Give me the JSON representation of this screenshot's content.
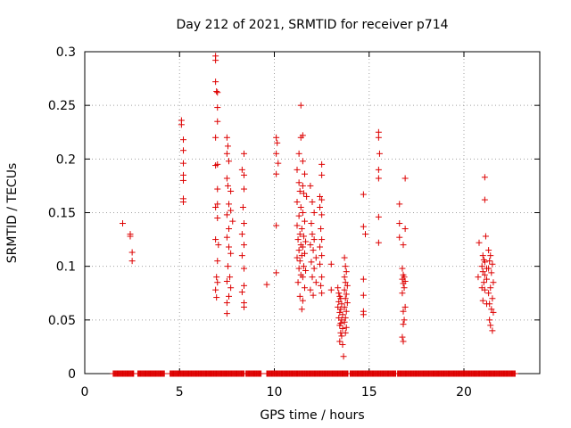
{
  "chart_data": {
    "type": "scatter",
    "title": "Day 212 of 2021, SRMTID for receiver p714",
    "xlabel": "GPS time / hours",
    "ylabel": "SRMTID / TECUs",
    "xlim": [
      0,
      24
    ],
    "ylim": [
      0,
      0.3
    ],
    "grid": true,
    "marker": "plus",
    "color": "#dd0000",
    "x_ticks": [
      0,
      5,
      10,
      15,
      20
    ],
    "x_tick_labels": [
      "0",
      "5",
      "10",
      "15",
      "20"
    ],
    "y_ticks": [
      0,
      0.05,
      0.1,
      0.15,
      0.2,
      0.25,
      0.3
    ],
    "y_tick_labels": [
      "0",
      "0.05",
      "0.1",
      "0.15",
      "0.2",
      "0.25",
      "0.3"
    ],
    "series": [
      {
        "name": "SRMTID",
        "points": [
          [
            2.0,
            0.14
          ],
          [
            2.4,
            0.13
          ],
          [
            2.4,
            0.128
          ],
          [
            2.5,
            0.113
          ],
          [
            2.5,
            0.105
          ],
          [
            5.1,
            0.236
          ],
          [
            5.1,
            0.232
          ],
          [
            5.2,
            0.218
          ],
          [
            5.2,
            0.208
          ],
          [
            5.2,
            0.196
          ],
          [
            5.2,
            0.185
          ],
          [
            5.2,
            0.18
          ],
          [
            5.2,
            0.163
          ],
          [
            5.2,
            0.16
          ],
          [
            6.9,
            0.296
          ],
          [
            6.9,
            0.292
          ],
          [
            6.9,
            0.272
          ],
          [
            6.95,
            0.263
          ],
          [
            7.0,
            0.262
          ],
          [
            7.0,
            0.248
          ],
          [
            7.0,
            0.235
          ],
          [
            6.9,
            0.22
          ],
          [
            7.0,
            0.195
          ],
          [
            6.9,
            0.194
          ],
          [
            7.0,
            0.172
          ],
          [
            7.0,
            0.158
          ],
          [
            6.9,
            0.155
          ],
          [
            7.0,
            0.145
          ],
          [
            6.9,
            0.125
          ],
          [
            7.05,
            0.12
          ],
          [
            7.0,
            0.105
          ],
          [
            6.95,
            0.09
          ],
          [
            7.0,
            0.085
          ],
          [
            6.9,
            0.078
          ],
          [
            6.95,
            0.071
          ],
          [
            7.5,
            0.22
          ],
          [
            7.55,
            0.212
          ],
          [
            7.5,
            0.205
          ],
          [
            7.6,
            0.198
          ],
          [
            7.5,
            0.182
          ],
          [
            7.55,
            0.175
          ],
          [
            7.7,
            0.17
          ],
          [
            7.6,
            0.158
          ],
          [
            7.7,
            0.152
          ],
          [
            7.5,
            0.148
          ],
          [
            7.8,
            0.142
          ],
          [
            7.6,
            0.135
          ],
          [
            7.5,
            0.127
          ],
          [
            7.6,
            0.118
          ],
          [
            7.7,
            0.112
          ],
          [
            7.55,
            0.1
          ],
          [
            7.65,
            0.09
          ],
          [
            7.5,
            0.086
          ],
          [
            7.7,
            0.08
          ],
          [
            7.6,
            0.072
          ],
          [
            7.5,
            0.066
          ],
          [
            7.5,
            0.056
          ],
          [
            8.4,
            0.205
          ],
          [
            8.3,
            0.19
          ],
          [
            8.4,
            0.185
          ],
          [
            8.4,
            0.172
          ],
          [
            8.35,
            0.155
          ],
          [
            8.4,
            0.14
          ],
          [
            8.3,
            0.13
          ],
          [
            8.4,
            0.12
          ],
          [
            8.3,
            0.11
          ],
          [
            8.4,
            0.098
          ],
          [
            8.4,
            0.082
          ],
          [
            8.3,
            0.076
          ],
          [
            8.4,
            0.066
          ],
          [
            8.4,
            0.062
          ],
          [
            9.6,
            0.083
          ],
          [
            10.1,
            0.22
          ],
          [
            10.15,
            0.215
          ],
          [
            10.1,
            0.205
          ],
          [
            10.2,
            0.196
          ],
          [
            10.1,
            0.186
          ],
          [
            10.1,
            0.138
          ],
          [
            10.1,
            0.094
          ],
          [
            11.4,
            0.25
          ],
          [
            11.5,
            0.222
          ],
          [
            11.4,
            0.22
          ],
          [
            11.3,
            0.205
          ],
          [
            11.5,
            0.198
          ],
          [
            11.2,
            0.19
          ],
          [
            11.6,
            0.186
          ],
          [
            11.3,
            0.178
          ],
          [
            11.5,
            0.175
          ],
          [
            11.35,
            0.17
          ],
          [
            11.55,
            0.168
          ],
          [
            11.7,
            0.165
          ],
          [
            11.2,
            0.16
          ],
          [
            11.4,
            0.155
          ],
          [
            11.5,
            0.15
          ],
          [
            11.3,
            0.147
          ],
          [
            11.6,
            0.142
          ],
          [
            11.2,
            0.138
          ],
          [
            11.45,
            0.135
          ],
          [
            11.35,
            0.13
          ],
          [
            11.55,
            0.128
          ],
          [
            11.25,
            0.125
          ],
          [
            11.65,
            0.123
          ],
          [
            11.4,
            0.12
          ],
          [
            11.5,
            0.118
          ],
          [
            11.3,
            0.115
          ],
          [
            11.6,
            0.112
          ],
          [
            11.45,
            0.11
          ],
          [
            11.2,
            0.108
          ],
          [
            11.35,
            0.105
          ],
          [
            11.55,
            0.1
          ],
          [
            11.3,
            0.098
          ],
          [
            11.65,
            0.096
          ],
          [
            11.4,
            0.092
          ],
          [
            11.5,
            0.09
          ],
          [
            11.25,
            0.085
          ],
          [
            11.6,
            0.08
          ],
          [
            11.35,
            0.072
          ],
          [
            11.5,
            0.068
          ],
          [
            11.45,
            0.06
          ],
          [
            11.9,
            0.175
          ],
          [
            12.0,
            0.16
          ],
          [
            12.1,
            0.15
          ],
          [
            11.95,
            0.14
          ],
          [
            12.0,
            0.13
          ],
          [
            12.1,
            0.125
          ],
          [
            11.9,
            0.12
          ],
          [
            12.05,
            0.115
          ],
          [
            12.2,
            0.108
          ],
          [
            11.95,
            0.104
          ],
          [
            12.1,
            0.098
          ],
          [
            12.0,
            0.09
          ],
          [
            12.2,
            0.085
          ],
          [
            11.9,
            0.078
          ],
          [
            12.05,
            0.073
          ],
          [
            12.5,
            0.195
          ],
          [
            12.5,
            0.185
          ],
          [
            12.4,
            0.165
          ],
          [
            12.5,
            0.162
          ],
          [
            12.4,
            0.155
          ],
          [
            12.5,
            0.148
          ],
          [
            12.45,
            0.135
          ],
          [
            12.5,
            0.125
          ],
          [
            12.4,
            0.118
          ],
          [
            12.5,
            0.11
          ],
          [
            12.4,
            0.102
          ],
          [
            12.5,
            0.09
          ],
          [
            12.45,
            0.082
          ],
          [
            12.5,
            0.075
          ],
          [
            13.0,
            0.102
          ],
          [
            13.0,
            0.078
          ],
          [
            13.35,
            0.08
          ],
          [
            13.4,
            0.075
          ],
          [
            13.45,
            0.072
          ],
          [
            13.5,
            0.07
          ],
          [
            13.4,
            0.067
          ],
          [
            13.55,
            0.065
          ],
          [
            13.35,
            0.062
          ],
          [
            13.5,
            0.06
          ],
          [
            13.45,
            0.057
          ],
          [
            13.6,
            0.055
          ],
          [
            13.4,
            0.052
          ],
          [
            13.55,
            0.05
          ],
          [
            13.5,
            0.047
          ],
          [
            13.45,
            0.045
          ],
          [
            13.6,
            0.042
          ],
          [
            13.5,
            0.038
          ],
          [
            13.55,
            0.035
          ],
          [
            13.45,
            0.03
          ],
          [
            13.6,
            0.027
          ],
          [
            13.65,
            0.016
          ],
          [
            13.7,
            0.108
          ],
          [
            13.75,
            0.1
          ],
          [
            13.8,
            0.095
          ],
          [
            13.7,
            0.09
          ],
          [
            13.75,
            0.085
          ],
          [
            13.85,
            0.082
          ],
          [
            13.7,
            0.078
          ],
          [
            13.8,
            0.074
          ],
          [
            13.75,
            0.07
          ],
          [
            13.85,
            0.066
          ],
          [
            13.7,
            0.062
          ],
          [
            13.8,
            0.058
          ],
          [
            13.75,
            0.052
          ],
          [
            13.7,
            0.048
          ],
          [
            13.8,
            0.043
          ],
          [
            13.75,
            0.038
          ],
          [
            14.7,
            0.167
          ],
          [
            14.7,
            0.137
          ],
          [
            14.8,
            0.13
          ],
          [
            14.7,
            0.088
          ],
          [
            14.7,
            0.073
          ],
          [
            14.7,
            0.058
          ],
          [
            14.7,
            0.055
          ],
          [
            15.5,
            0.225
          ],
          [
            15.5,
            0.22
          ],
          [
            15.55,
            0.205
          ],
          [
            15.5,
            0.19
          ],
          [
            15.5,
            0.182
          ],
          [
            15.5,
            0.146
          ],
          [
            15.5,
            0.122
          ],
          [
            16.6,
            0.158
          ],
          [
            16.6,
            0.14
          ],
          [
            16.6,
            0.127
          ],
          [
            16.9,
            0.182
          ],
          [
            16.9,
            0.135
          ],
          [
            16.8,
            0.12
          ],
          [
            16.75,
            0.098
          ],
          [
            16.8,
            0.092
          ],
          [
            16.85,
            0.09
          ],
          [
            16.75,
            0.088
          ],
          [
            16.9,
            0.086
          ],
          [
            16.8,
            0.084
          ],
          [
            16.85,
            0.08
          ],
          [
            16.75,
            0.075
          ],
          [
            16.9,
            0.062
          ],
          [
            16.8,
            0.058
          ],
          [
            16.85,
            0.05
          ],
          [
            16.8,
            0.046
          ],
          [
            16.75,
            0.034
          ],
          [
            16.8,
            0.03
          ],
          [
            20.8,
            0.122
          ],
          [
            20.75,
            0.09
          ],
          [
            21.1,
            0.183
          ],
          [
            21.1,
            0.162
          ],
          [
            21.15,
            0.128
          ],
          [
            21.0,
            0.11
          ],
          [
            21.05,
            0.106
          ],
          [
            21.1,
            0.104
          ],
          [
            20.95,
            0.1
          ],
          [
            21.2,
            0.098
          ],
          [
            21.0,
            0.095
          ],
          [
            21.1,
            0.092
          ],
          [
            21.2,
            0.088
          ],
          [
            21.05,
            0.085
          ],
          [
            20.95,
            0.08
          ],
          [
            21.1,
            0.078
          ],
          [
            21.0,
            0.068
          ],
          [
            21.2,
            0.065
          ],
          [
            21.3,
            0.115
          ],
          [
            21.4,
            0.11
          ],
          [
            21.35,
            0.105
          ],
          [
            21.5,
            0.102
          ],
          [
            21.3,
            0.098
          ],
          [
            21.45,
            0.094
          ],
          [
            21.55,
            0.085
          ],
          [
            21.4,
            0.08
          ],
          [
            21.3,
            0.075
          ],
          [
            21.5,
            0.07
          ],
          [
            21.35,
            0.065
          ],
          [
            21.45,
            0.06
          ],
          [
            21.55,
            0.057
          ],
          [
            21.35,
            0.05
          ],
          [
            21.4,
            0.045
          ],
          [
            21.5,
            0.04
          ]
        ],
        "zero_runs": [
          [
            1.5,
            2.6
          ],
          [
            2.8,
            3.4
          ],
          [
            3.4,
            4.2
          ],
          [
            4.5,
            5.6
          ],
          [
            5.6,
            6.6
          ],
          [
            6.6,
            7.4
          ],
          [
            7.4,
            8.4
          ],
          [
            8.5,
            9.3
          ],
          [
            9.6,
            10.6
          ],
          [
            10.6,
            11.7
          ],
          [
            11.7,
            12.8
          ],
          [
            12.8,
            13.9
          ],
          [
            14.0,
            14.6
          ],
          [
            14.6,
            15.6
          ],
          [
            15.6,
            16.4
          ],
          [
            16.5,
            17.6
          ],
          [
            17.6,
            18.6
          ],
          [
            18.6,
            19.6
          ],
          [
            19.6,
            20.6
          ],
          [
            20.6,
            21.4
          ],
          [
            21.4,
            22.1
          ],
          [
            22.1,
            22.7
          ]
        ]
      }
    ]
  }
}
